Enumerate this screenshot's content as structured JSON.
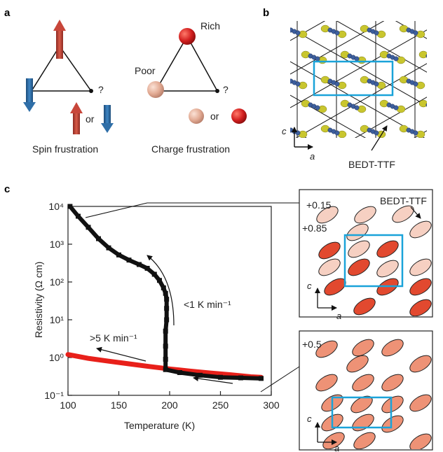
{
  "figure": {
    "panel_a": {
      "label": "a",
      "question_mark_1": "?",
      "question_mark_2": "?",
      "or_1": "or",
      "or_2": "or",
      "rich": "Rich",
      "poor": "Poor",
      "caption_spin": "Spin frustration",
      "caption_charge": "Charge frustration",
      "colors": {
        "arrow_up": "#c8463a",
        "arrow_down": "#2f6fa8",
        "rich_ball": "#d21f1f",
        "poor_ball": "#e9b7a3"
      }
    },
    "panel_b": {
      "label": "b",
      "axis_c": "c",
      "axis_a": "a",
      "molecule_label": "BEDT-TTF",
      "colors": {
        "unit_cell": "#1aa3d9",
        "sulfur": "#c9c62e",
        "carbon": "#3d5f9e"
      }
    },
    "panel_c": {
      "label": "c",
      "annotation_fast": ">5 K min⁻¹",
      "annotation_slow": "<1 K min⁻¹",
      "inset_top": {
        "charge_low": "+0.15",
        "charge_high": "+0.85",
        "molecule_label": "BEDT-TTF",
        "axis_c": "c",
        "axis_a": "a",
        "colors": {
          "low": "#f6d0c2",
          "high": "#e2492f",
          "cell": "#1aa3d9"
        }
      },
      "inset_bottom": {
        "charge": "+0.5",
        "axis_c": "c",
        "axis_a": "a",
        "colors": {
          "mid": "#ee9276",
          "cell": "#1aa3d9"
        }
      }
    }
  },
  "chart_data": {
    "type": "line",
    "xlabel": "Temperature (K)",
    "ylabel": "Resistivity (Ω cm)",
    "xlim": [
      100,
      300
    ],
    "ylim_log10": [
      -1,
      4
    ],
    "log_y": true,
    "x_ticks": [
      "100",
      "150",
      "200",
      "250",
      "300"
    ],
    "y_ticks": [
      "10⁻¹",
      "10⁰",
      "10¹",
      "10²",
      "10³",
      "10⁴"
    ],
    "series": [
      {
        "color": "#e8201a",
        "points": [
          [
            100,
            1.2
          ],
          [
            120,
            0.95
          ],
          [
            140,
            0.8
          ],
          [
            160,
            0.68
          ],
          [
            180,
            0.58
          ],
          [
            200,
            0.5
          ],
          [
            220,
            0.44
          ],
          [
            240,
            0.39
          ],
          [
            260,
            0.35
          ],
          [
            280,
            0.31
          ],
          [
            290,
            0.3
          ]
        ]
      },
      {
        "color": "#111111",
        "points": [
          [
            290,
            0.28
          ],
          [
            270,
            0.29
          ],
          [
            250,
            0.3
          ],
          [
            230,
            0.34
          ],
          [
            210,
            0.4
          ],
          [
            196,
            0.48
          ],
          [
            196,
            0.9
          ],
          [
            196,
            2
          ],
          [
            196,
            5
          ],
          [
            197,
            10
          ],
          [
            197,
            20
          ],
          [
            197,
            35
          ],
          [
            196,
            50
          ],
          [
            194,
            70
          ],
          [
            190,
            110
          ],
          [
            185,
            160
          ],
          [
            178,
            230
          ],
          [
            170,
            290
          ],
          [
            160,
            380
          ],
          [
            150,
            520
          ],
          [
            140,
            800
          ],
          [
            130,
            1400
          ],
          [
            120,
            2800
          ],
          [
            110,
            5500
          ],
          [
            102,
            10000
          ]
        ]
      }
    ]
  }
}
